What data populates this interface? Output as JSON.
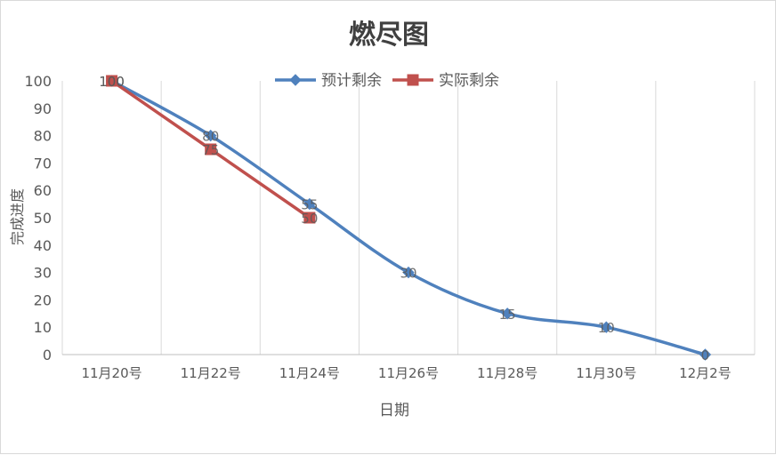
{
  "chart_data": {
    "type": "line",
    "title": "燃尽图",
    "xlabel": "日期",
    "ylabel": "完成进度",
    "categories": [
      "11月20号",
      "11月22号",
      "11月24号",
      "11月26号",
      "11月28号",
      "11月30号",
      "12月2号"
    ],
    "ylim": [
      0,
      100
    ],
    "yticks": [
      0,
      10,
      20,
      30,
      40,
      50,
      60,
      70,
      80,
      90,
      100
    ],
    "grid": "vertical",
    "legend_position": "top",
    "series": [
      {
        "name": "预计剩余",
        "values": [
          100,
          80,
          55,
          30,
          15,
          10,
          0
        ],
        "color": "#4f81bd",
        "marker": "diamond",
        "smooth": true
      },
      {
        "name": "实际剩余",
        "values": [
          100,
          75,
          50,
          null,
          null,
          null,
          null
        ],
        "color": "#c0504d",
        "marker": "square",
        "smooth": false
      }
    ],
    "colors": {
      "grid": "#d9d9d9",
      "axis": "#bfbfbf",
      "text": "#595959",
      "title": "#404040"
    }
  }
}
